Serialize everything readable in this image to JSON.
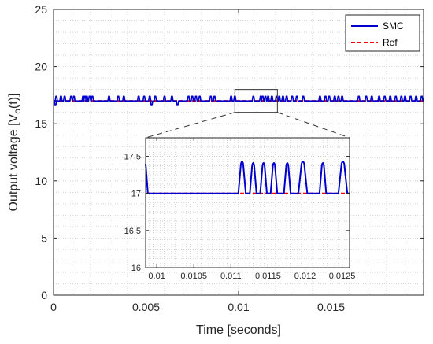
{
  "chart_data": [
    {
      "id": "main",
      "type": "line",
      "xlabel": "Time [seconds]",
      "ylabel_parts": [
        "Output voltage [V",
        "o",
        "(t)]"
      ],
      "xlim": [
        0,
        0.02
      ],
      "ylim": [
        0,
        25
      ],
      "xticks": [
        0,
        0.005,
        0.01,
        0.015
      ],
      "xtick_labels": [
        "0",
        "0.005",
        "0.01",
        "0.015"
      ],
      "yticks": [
        0,
        5,
        10,
        15,
        20,
        25
      ],
      "ytick_labels": [
        "0",
        "5",
        "10",
        "15",
        "20",
        "25"
      ],
      "grid": "major+minor dotted",
      "legend": {
        "placement": "top-right",
        "entries": [
          "SMC",
          "Ref"
        ]
      },
      "series": [
        {
          "name": "SMC",
          "color": "#0000cc",
          "style": "solid",
          "base": 17,
          "spike_high": 17.4,
          "dip_low": 16.6,
          "spikes": [
            0.00015,
            0.0004,
            0.0006,
            0.00095,
            0.0011,
            0.0016,
            0.0017,
            0.0018,
            0.00195,
            0.0021,
            0.003,
            0.0035,
            0.0038,
            0.0046,
            0.0049,
            0.0052,
            0.0055,
            0.006,
            0.0064,
            0.0073,
            0.0075,
            0.0077,
            0.0079,
            0.0085,
            0.0087,
            0.0096,
            0.0098,
            0.0108,
            0.0112,
            0.0113,
            0.01145,
            0.0116,
            0.0118,
            0.01205,
            0.0122,
            0.0124,
            0.0126,
            0.0129,
            0.01315,
            0.0135,
            0.0144,
            0.0147,
            0.0149,
            0.0152,
            0.0154,
            0.0156,
            0.0165,
            0.0169,
            0.0172,
            0.0176,
            0.0179,
            0.0182,
            0.0185,
            0.0188,
            0.019,
            0.0193,
            0.0196,
            0.0199
          ],
          "dips": [
            0.0001,
            0.0053,
            0.0067
          ]
        },
        {
          "name": "Ref",
          "color": "#ff0000",
          "style": "dashed",
          "value": 17
        }
      ]
    },
    {
      "id": "inset",
      "type": "line",
      "xlim": [
        0.00985,
        0.0126
      ],
      "ylim": [
        16,
        17.75
      ],
      "xticks": [
        0.01,
        0.0105,
        0.011,
        0.0115,
        0.012,
        0.0125
      ],
      "xtick_labels": [
        "0.01",
        "0.0105",
        "0.011",
        "0.0115",
        "0.012",
        "0.0125"
      ],
      "yticks": [
        16,
        16.5,
        17,
        17.5
      ],
      "ytick_labels": [
        "16",
        "16.5",
        "17",
        "17.5"
      ],
      "grid": "major+minor dotted",
      "zoom_region": {
        "x": [
          0.0098,
          0.0121
        ],
        "y": [
          16,
          18
        ]
      },
      "series": [
        {
          "name": "SMC",
          "color": "#0000cc",
          "start_value": 17.4,
          "start_fall_end": 0.00988,
          "base": 17,
          "pulses": [
            {
              "t": 0.01115,
              "peak": 17.4,
              "width": 0.0001
            },
            {
              "t": 0.0113,
              "peak": 17.38,
              "width": 9e-05
            },
            {
              "t": 0.01144,
              "peak": 17.38,
              "width": 9e-05
            },
            {
              "t": 0.01158,
              "peak": 17.38,
              "width": 9e-05
            },
            {
              "t": 0.01176,
              "peak": 17.38,
              "width": 9e-05
            },
            {
              "t": 0.01197,
              "peak": 17.4,
              "width": 0.00012
            },
            {
              "t": 0.01224,
              "peak": 17.38,
              "width": 9e-05
            },
            {
              "t": 0.01251,
              "peak": 17.4,
              "width": 0.00012
            }
          ]
        },
        {
          "name": "Ref",
          "color": "#ff0000",
          "style": "dashed",
          "value": 17
        }
      ]
    }
  ]
}
